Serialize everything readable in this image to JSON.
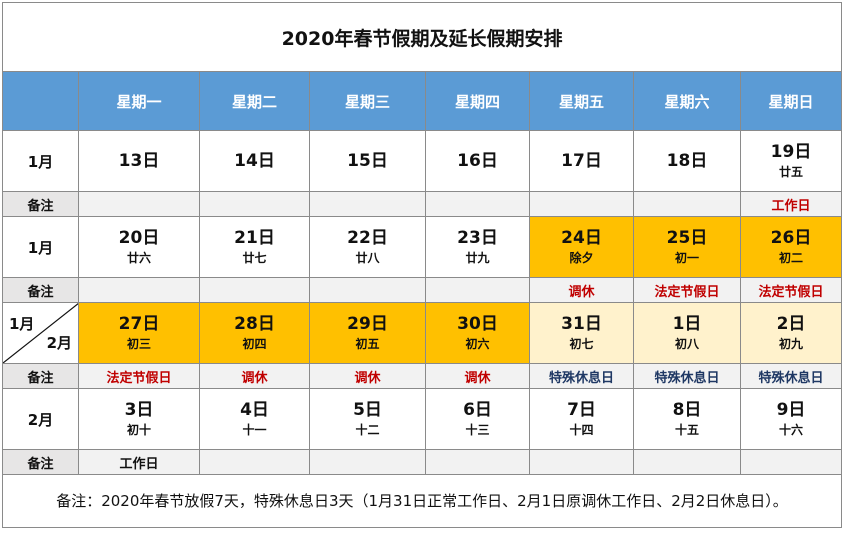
{
  "title": "2020年春节假期及延长假期安排",
  "weekdays": [
    "星期一",
    "星期二",
    "星期三",
    "星期四",
    "星期五",
    "星期六",
    "星期日"
  ],
  "note_label": "备注",
  "weeks": [
    {
      "month": "1月",
      "days": [
        {
          "day": "13日",
          "lunar": ""
        },
        {
          "day": "14日",
          "lunar": ""
        },
        {
          "day": "15日",
          "lunar": ""
        },
        {
          "day": "16日",
          "lunar": ""
        },
        {
          "day": "17日",
          "lunar": ""
        },
        {
          "day": "18日",
          "lunar": ""
        },
        {
          "day": "19日",
          "lunar": "廿五"
        }
      ],
      "notes": [
        "",
        "",
        "",
        "",
        "",
        "",
        "工作日"
      ]
    },
    {
      "month": "1月",
      "days": [
        {
          "day": "20日",
          "lunar": "廿六"
        },
        {
          "day": "21日",
          "lunar": "廿七"
        },
        {
          "day": "22日",
          "lunar": "廿八"
        },
        {
          "day": "23日",
          "lunar": "廿九"
        },
        {
          "day": "24日",
          "lunar": "除夕"
        },
        {
          "day": "25日",
          "lunar": "初一"
        },
        {
          "day": "26日",
          "lunar": "初二"
        }
      ],
      "notes": [
        "",
        "",
        "",
        "",
        "调休",
        "法定节假日",
        "法定节假日"
      ]
    },
    {
      "month_top": "1月",
      "month_bottom": "2月",
      "days": [
        {
          "day": "27日",
          "lunar": "初三"
        },
        {
          "day": "28日",
          "lunar": "初四"
        },
        {
          "day": "29日",
          "lunar": "初五"
        },
        {
          "day": "30日",
          "lunar": "初六"
        },
        {
          "day": "31日",
          "lunar": "初七"
        },
        {
          "day": "1日",
          "lunar": "初八"
        },
        {
          "day": "2日",
          "lunar": "初九"
        }
      ],
      "notes": [
        "法定节假日",
        "调休",
        "调休",
        "调休",
        "特殊休息日",
        "特殊休息日",
        "特殊休息日"
      ]
    },
    {
      "month": "2月",
      "days": [
        {
          "day": "3日",
          "lunar": "初十"
        },
        {
          "day": "4日",
          "lunar": "十一"
        },
        {
          "day": "5日",
          "lunar": "十二"
        },
        {
          "day": "6日",
          "lunar": "十三"
        },
        {
          "day": "7日",
          "lunar": "十四"
        },
        {
          "day": "8日",
          "lunar": "十五"
        },
        {
          "day": "9日",
          "lunar": "十六"
        }
      ],
      "notes": [
        "工作日",
        "",
        "",
        "",
        "",
        "",
        ""
      ]
    }
  ],
  "footnote": "备注：2020年春节放假7天，特殊休息日3天（1月31日正常工作日、2月1日原调休工作日、2月2日休息日）。",
  "colors": {
    "header": "#5b9bd5",
    "holiday": "#ffc000",
    "special": "#fff2cc",
    "red_note": "#c00000",
    "blue_note": "#1f3864"
  }
}
